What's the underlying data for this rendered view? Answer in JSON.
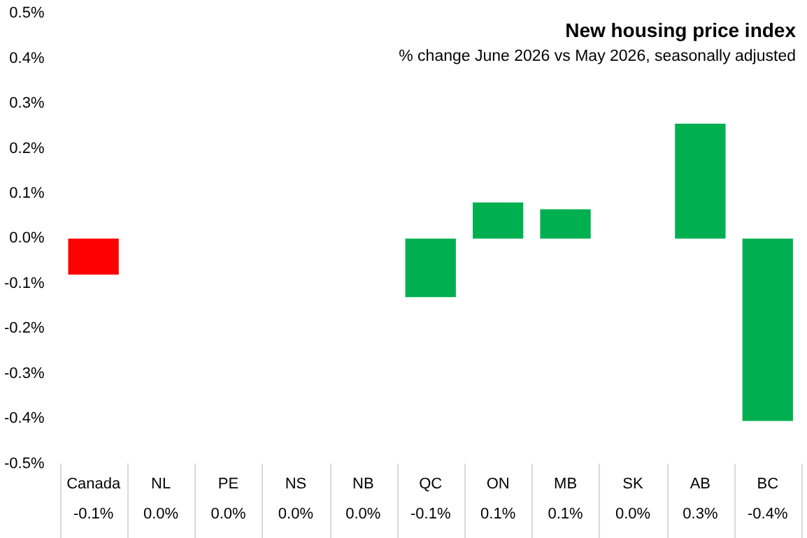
{
  "chart_data": {
    "type": "bar",
    "title": "New housing price index",
    "subtitle": "% change June 2026 vs May 2026, seasonally adjusted",
    "categories": [
      "Canada",
      "NL",
      "PE",
      "NS",
      "NB",
      "QC",
      "ON",
      "MB",
      "SK",
      "AB",
      "BC"
    ],
    "values": [
      -0.08,
      0,
      0,
      0,
      0,
      -0.13,
      0.08,
      0.065,
      0,
      0.255,
      -0.405
    ],
    "value_labels": [
      "-0.1%",
      "0.0%",
      "0.0%",
      "0.0%",
      "0.0%",
      "-0.1%",
      "0.1%",
      "0.1%",
      "0.0%",
      "0.3%",
      "-0.4%"
    ],
    "colors": [
      "#ff0000",
      "#00b050",
      "#00b050",
      "#00b050",
      "#00b050",
      "#00b050",
      "#00b050",
      "#00b050",
      "#00b050",
      "#00b050",
      "#00b050"
    ],
    "ylim": [
      -0.5,
      0.5
    ],
    "yticks": [
      {
        "value": -0.5,
        "label": "-0.5%"
      },
      {
        "value": -0.4,
        "label": "-0.4%"
      },
      {
        "value": -0.3,
        "label": "-0.3%"
      },
      {
        "value": -0.2,
        "label": "-0.2%"
      },
      {
        "value": -0.1,
        "label": "-0.1%"
      },
      {
        "value": 0,
        "label": "0.0%"
      },
      {
        "value": 0.1,
        "label": "0.1%"
      },
      {
        "value": 0.2,
        "label": "0.2%"
      },
      {
        "value": 0.3,
        "label": "0.3%"
      },
      {
        "value": 0.4,
        "label": "0.4%"
      },
      {
        "value": 0.5,
        "label": "0.5%"
      }
    ],
    "grid": false,
    "legend": false
  }
}
